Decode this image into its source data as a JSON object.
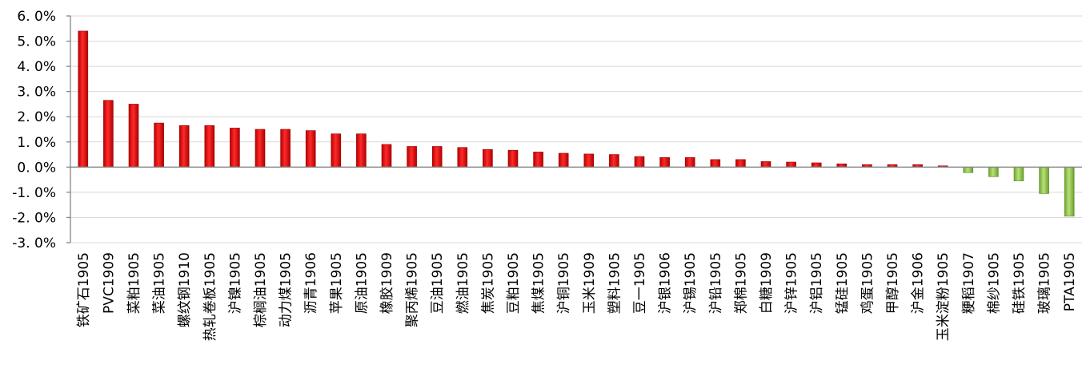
{
  "chart_data": {
    "type": "bar",
    "title": "",
    "xlabel": "",
    "ylabel": "",
    "ylim": [
      -3.0,
      6.0
    ],
    "yticks": [
      6.0,
      5.0,
      4.0,
      3.0,
      2.0,
      1.0,
      0.0,
      -1.0,
      -2.0,
      -3.0
    ],
    "ytick_labels": [
      "6. 0%",
      "5. 0%",
      "4. 0%",
      "3. 0%",
      "2. 0%",
      "1. 0%",
      "0. 0%",
      "-1. 0%",
      "-2. 0%",
      "-3. 0%"
    ],
    "grid": true,
    "legend": "none",
    "colors": {
      "positive": "#e01010",
      "negative": "#8fc642"
    },
    "categories": [
      "铁矿石1905",
      "PVC1909",
      "菜粕1905",
      "菜油1905",
      "螺纹钢1910",
      "热轧卷板1905",
      "沪镍1905",
      "棕榈油1905",
      "动力煤1905",
      "沥青1906",
      "苹果1905",
      "原油1905",
      "橡胶1909",
      "聚丙烯1905",
      "豆油1905",
      "燃油1905",
      "焦炭1905",
      "豆粕1905",
      "焦煤1905",
      "沪铜1905",
      "玉米1909",
      "塑料1905",
      "豆一1905",
      "沪银1906",
      "沪锡1905",
      "沪铅1905",
      "郑棉1905",
      "白糖1909",
      "沪锌1905",
      "沪铝1905",
      "锰硅1905",
      "鸡蛋1905",
      "甲醇1905",
      "沪金1906",
      "玉米淀粉1905",
      "粳稻1907",
      "棉纱1905",
      "硅铁1905",
      "玻璃1905",
      "PTA1905"
    ],
    "values": [
      5.4,
      2.65,
      2.5,
      1.75,
      1.65,
      1.65,
      1.55,
      1.5,
      1.5,
      1.45,
      1.32,
      1.32,
      0.9,
      0.82,
      0.82,
      0.78,
      0.7,
      0.67,
      0.6,
      0.55,
      0.52,
      0.5,
      0.42,
      0.38,
      0.38,
      0.3,
      0.3,
      0.22,
      0.2,
      0.17,
      0.13,
      0.1,
      0.1,
      0.1,
      0.05,
      -0.22,
      -0.38,
      -0.55,
      -1.05,
      -1.95
    ]
  }
}
